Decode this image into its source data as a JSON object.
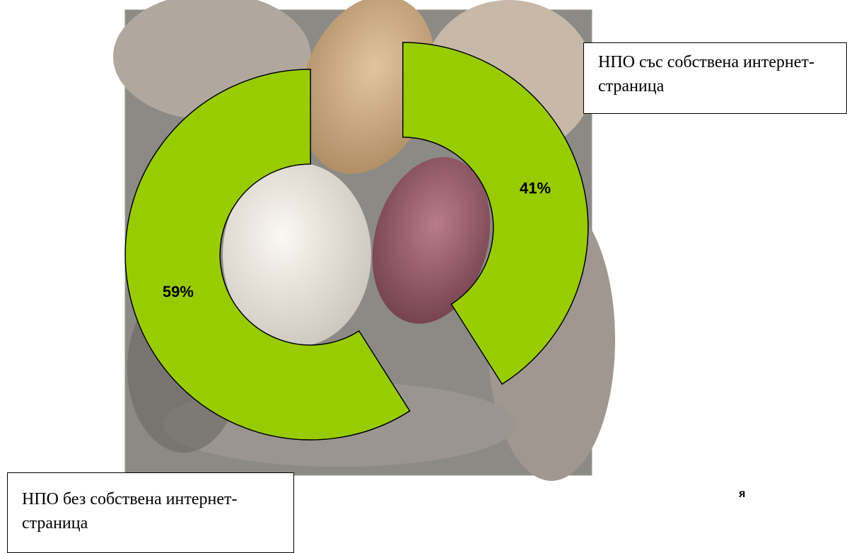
{
  "chart_data": {
    "type": "pie",
    "categories": [
      "НПО със собствена интернет-страница",
      "НПО без собствена интернет-страница"
    ],
    "values": [
      41,
      59
    ],
    "value_labels": [
      "41%",
      "59%"
    ],
    "color": "#99cc00",
    "annotations": [
      "я"
    ]
  }
}
